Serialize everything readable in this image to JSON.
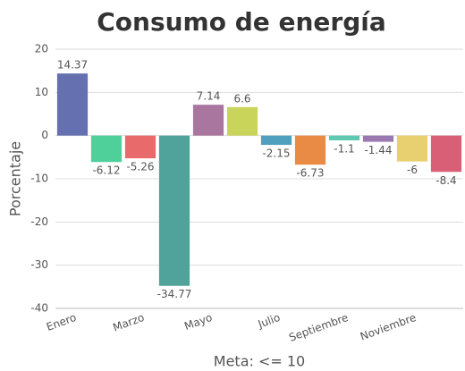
{
  "chart_data": {
    "type": "bar",
    "title": "Consumo de energía",
    "y_label": "Porcentaje",
    "x_label": "Meta: <= 10",
    "categories": [
      "Enero",
      null,
      "Marzo",
      null,
      "Mayo",
      null,
      "Julio",
      null,
      "Septiembre",
      null,
      "Noviembre",
      null
    ],
    "values": [
      14.37,
      -6.12,
      -5.26,
      -34.77,
      7.14,
      6.6,
      -2.15,
      -6.73,
      -1.1,
      -1.44,
      -6,
      -8.4
    ],
    "colors": [
      "#6470b0",
      "#4fcf9a",
      "#e96a6a",
      "#4fa39b",
      "#a8769e",
      "#c9d45a",
      "#4f9fbf",
      "#e98a45",
      "#5ec9b0",
      "#9a79b0",
      "#e8d070",
      "#d85f76"
    ],
    "ylim": [
      -40,
      20
    ],
    "yticks": [
      -40,
      -30,
      -20,
      -10,
      0,
      10,
      20
    ],
    "grid": true
  }
}
